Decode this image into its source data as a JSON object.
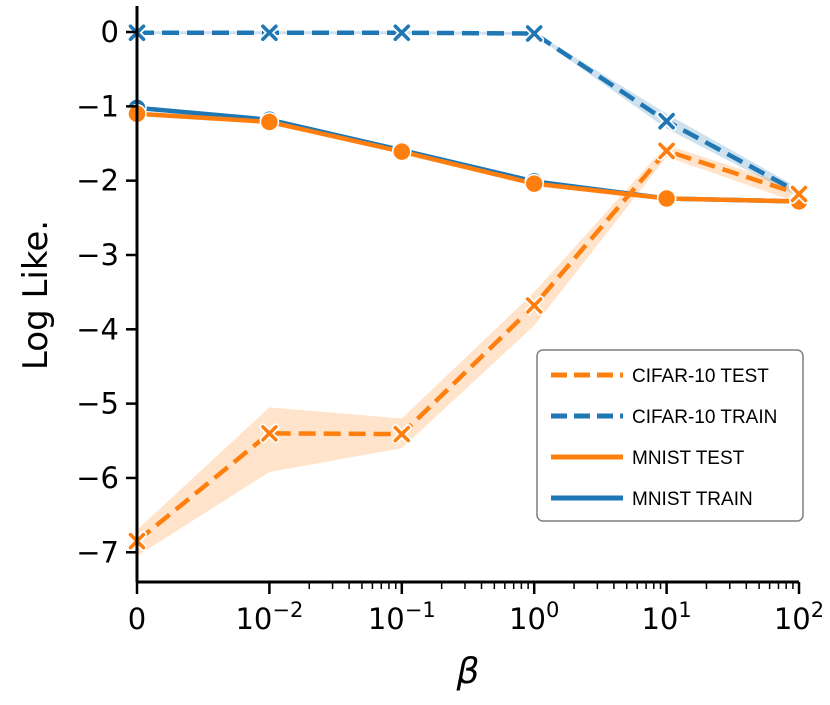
{
  "chart_data": {
    "type": "line",
    "title": "",
    "xlabel": "β",
    "ylabel": "Log Like.",
    "x": [
      0,
      0.01,
      0.1,
      1,
      10,
      100
    ],
    "x_tick_labels": [
      {
        "base": "0",
        "exp": ""
      },
      {
        "base": "10",
        "exp": "−2"
      },
      {
        "base": "10",
        "exp": "−1"
      },
      {
        "base": "10",
        "exp": "0"
      },
      {
        "base": "10",
        "exp": "1"
      },
      {
        "base": "10",
        "exp": "2"
      }
    ],
    "y_ticks": [
      0,
      -1,
      -2,
      -3,
      -4,
      -5,
      -6,
      -7
    ],
    "y_tick_labels": [
      "0",
      "−1",
      "−2",
      "−3",
      "−4",
      "−5",
      "−6",
      "−7"
    ],
    "ylim": [
      -7.4,
      0.35
    ],
    "grid": false,
    "legend_position": "lower-right",
    "series": [
      {
        "name": "MNIST TRAIN",
        "color": "#1f77b4",
        "style": "solid",
        "marker": "circle",
        "values": [
          -1.02,
          -1.18,
          -1.59,
          -2.01,
          -2.24,
          -2.28
        ]
      },
      {
        "name": "CIFAR-10 TRAIN",
        "color": "#1f77b4",
        "style": "dashed",
        "marker": "x",
        "values": [
          -0.01,
          -0.01,
          -0.01,
          -0.02,
          -1.2,
          -2.16
        ],
        "band_lower": [
          -0.03,
          -0.03,
          -0.03,
          -0.04,
          -1.3,
          -2.22
        ],
        "band_upper": [
          0.01,
          0.01,
          0.01,
          0.0,
          -1.1,
          -2.1
        ]
      },
      {
        "name": "MNIST TEST",
        "color": "#ff7f0e",
        "style": "solid",
        "marker": "circle",
        "values": [
          -1.1,
          -1.21,
          -1.61,
          -2.04,
          -2.24,
          -2.28
        ]
      },
      {
        "name": "CIFAR-10 TEST",
        "color": "#ff7f0e",
        "style": "dashed",
        "marker": "x",
        "values": [
          -6.85,
          -5.4,
          -5.41,
          -3.68,
          -1.6,
          -2.18
        ],
        "band_lower": [
          -7.05,
          -5.92,
          -5.6,
          -3.95,
          -1.68,
          -2.3
        ],
        "band_upper": [
          -6.7,
          -5.05,
          -5.2,
          -3.5,
          -1.52,
          -2.1
        ]
      }
    ],
    "legend": [
      {
        "label": "CIFAR-10 TEST",
        "color": "#ff7f0e",
        "style": "dashed"
      },
      {
        "label": "CIFAR-10 TRAIN",
        "color": "#1f77b4",
        "style": "dashed"
      },
      {
        "label": "MNIST TEST",
        "color": "#ff7f0e",
        "style": "solid"
      },
      {
        "label": "MNIST TRAIN",
        "color": "#1f77b4",
        "style": "solid"
      }
    ]
  }
}
